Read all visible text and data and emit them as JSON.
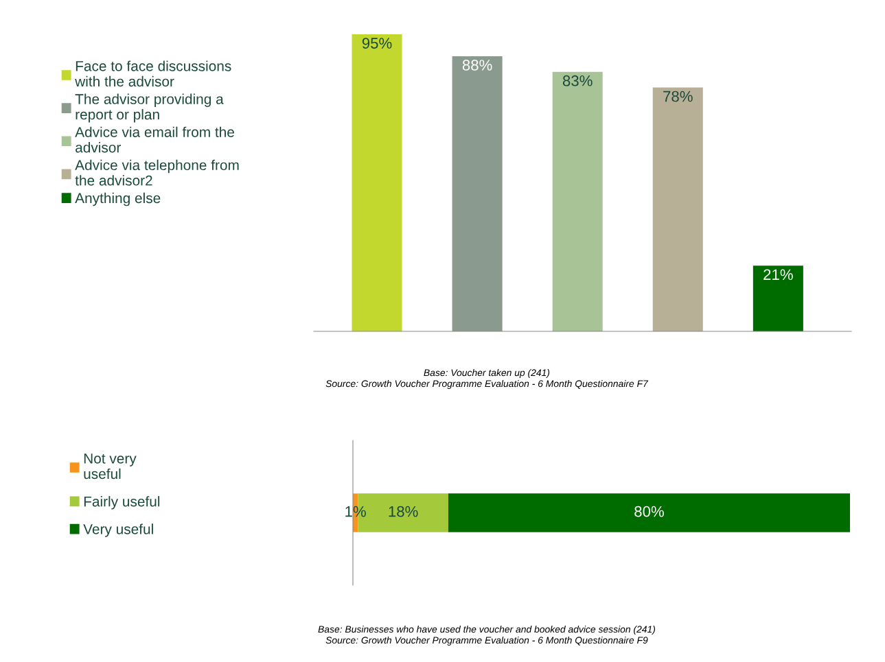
{
  "chart_data": [
    {
      "type": "bar",
      "stacked": true,
      "categories": [
        null,
        null,
        null,
        null,
        null
      ],
      "legend": "left",
      "series": [
        {
          "name": "Face to face discussions\nwith the advisor",
          "color": "#c2d82f",
          "values": [
            95,
            null,
            null,
            null,
            null
          ],
          "value_labels": [
            "95%",
            null,
            null,
            null,
            null
          ]
        },
        {
          "name": "The advisor providing a\nreport or plan",
          "color": "#8a9a8e",
          "values": [
            null,
            88,
            null,
            null,
            null
          ],
          "value_labels": [
            null,
            "88%",
            null,
            null,
            null
          ]
        },
        {
          "name": "Advice via email from the\nadvisor",
          "color": "#a8c396",
          "values": [
            null,
            null,
            83,
            null,
            null
          ],
          "value_labels": [
            null,
            null,
            "83%",
            null,
            null
          ]
        },
        {
          "name": "Advice via telephone from\nthe advisor2",
          "color": "#b8af97",
          "values": [
            null,
            null,
            null,
            78,
            null
          ],
          "value_labels": [
            null,
            null,
            null,
            "78%",
            null
          ]
        },
        {
          "name": "Anything else",
          "color": "#006c00",
          "values": [
            null,
            null,
            null,
            null,
            21
          ],
          "value_labels": [
            null,
            null,
            null,
            null,
            "21%"
          ]
        }
      ],
      "annotations": [
        "Base: Voucher taken up (241)\nSource: Growth Voucher Programme Evaluation - 6 Month Questionnaire F7"
      ]
    },
    {
      "type": "bar",
      "orientation": "horizontal",
      "stacked": true,
      "categories": [
        null
      ],
      "legend": "left",
      "series": [
        {
          "name": "Not very\nuseful",
          "color": "#f7941d",
          "values": [
            1
          ],
          "value_labels": [
            "1%"
          ]
        },
        {
          "name": "Fairly useful",
          "color": "#a4c93b",
          "values": [
            18
          ],
          "value_labels": [
            "18%"
          ]
        },
        {
          "name": "Very useful",
          "color": "#006c00",
          "values": [
            80
          ],
          "value_labels": [
            "80%"
          ]
        }
      ],
      "annotations": [
        "Base: Businesses who have used the voucher and booked advice session (241)\nSource: Growth Voucher Programme Evaluation - 6 Month Questionnaire F9"
      ]
    }
  ]
}
